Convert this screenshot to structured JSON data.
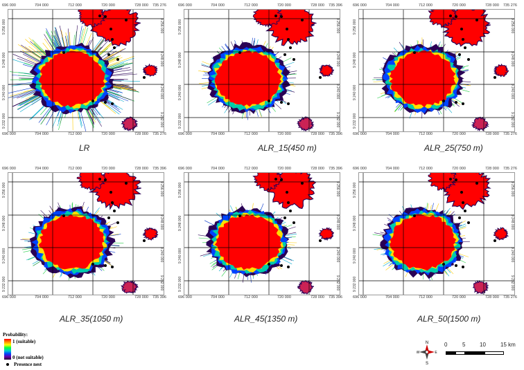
{
  "panels": [
    {
      "caption": "LR",
      "x_top": [
        "696 000",
        "704 000",
        "712 000",
        "720 000",
        "728 000",
        "735 276"
      ],
      "x_bot": [
        "696 000",
        "704 000",
        "712 000",
        "720 000",
        "728 000",
        "735 276"
      ],
      "y_left": [
        "9 256 000",
        "9 248 000",
        "9 240 000",
        "9 232 000"
      ],
      "y_right": [
        "9 256 000",
        "9 248 000",
        "9 240 000",
        "9 232 000"
      ],
      "variant": 0
    },
    {
      "caption": "ALR_15(450 m)",
      "x_top": [
        "696 000",
        "704 000",
        "712 000",
        "720 000",
        "728 000",
        "735 396"
      ],
      "x_bot": [
        "696 000",
        "704 000",
        "712 000",
        "720 000",
        "728 000",
        "735 396"
      ],
      "y_left": [
        "9 256 000",
        "9 248 000",
        "9 240 000",
        "9 232 000"
      ],
      "y_right": [
        "9 256 000",
        "9 248 000",
        "9 240 000",
        "9 232 000"
      ],
      "variant": 1
    },
    {
      "caption": "ALR_25(750 m)",
      "x_top": [
        "696 000",
        "704 000",
        "712 000",
        "720 000",
        "728 000",
        "735 276"
      ],
      "x_bot": [
        "696 000",
        "704 000",
        "712 000",
        "720 000",
        "728 000",
        "735 276"
      ],
      "y_left": [
        "9 256 000",
        "9 248 000",
        "9 240 000",
        "9 232 000"
      ],
      "y_right": [
        "9 256 000",
        "9 248 000",
        "9 240 000",
        "9 232 000"
      ],
      "variant": 2
    },
    {
      "caption": "ALR_35(1050 m)",
      "x_top": [
        "696 000",
        "704 000",
        "712 000",
        "720 000",
        "728 000",
        "735 396"
      ],
      "x_bot": [
        "696 000",
        "704 000",
        "712 000",
        "720 000",
        "728 000",
        "735 396"
      ],
      "y_left": [
        "9 256 000",
        "9 248 000",
        "9 240 000",
        "9 232 000"
      ],
      "y_right": [
        "9 256 000",
        "9 248 000",
        "9 240 000",
        "9 232 000"
      ],
      "variant": 3
    },
    {
      "caption": "ALR_45(1350 m)",
      "x_top": [
        "696 000",
        "704 000",
        "712 000",
        "720 000",
        "728 000",
        "735 396"
      ],
      "x_bot": [
        "696 000",
        "704 000",
        "712 000",
        "720 000",
        "728 000",
        "735 396"
      ],
      "y_left": [
        "9 256 000",
        "9 248 000",
        "9 240 000",
        "9 232 000"
      ],
      "y_right": [
        "9 256 000",
        "9 248 000",
        "9 240 000",
        "9 232 000"
      ],
      "variant": 4
    },
    {
      "caption": "ALR_50(1500 m)",
      "x_top": [
        "696 000",
        "704 000",
        "712 000",
        "720 000",
        "728 000",
        "735 276"
      ],
      "x_bot": [
        "696 000",
        "704 000",
        "712 000",
        "720 000",
        "728 000",
        "735 276"
      ],
      "y_left": [
        "9 256 000",
        "9 248 000",
        "9 240 000",
        "9 232 000"
      ],
      "y_right": [
        "9 256 000",
        "9 248 000",
        "9 240 000",
        "9 232 000"
      ],
      "variant": 5
    }
  ],
  "legend": {
    "title": "Probability:",
    "high": "1 (suitable)",
    "low": "0 (not suitable)",
    "nest": "Presence nest",
    "ramp_colors": [
      "#ff0000",
      "#ff8800",
      "#ffff00",
      "#00ff44",
      "#00cccc",
      "#0044ff",
      "#6600aa"
    ]
  },
  "compass": {
    "n": "N",
    "s": "S",
    "e": "E",
    "w": "W"
  },
  "scalebar": {
    "ticks": [
      "0",
      "5",
      "10",
      "15 km"
    ]
  },
  "colors": {
    "suitable": "#ff0000",
    "edge": "#2a0055",
    "nest": "#000000"
  }
}
